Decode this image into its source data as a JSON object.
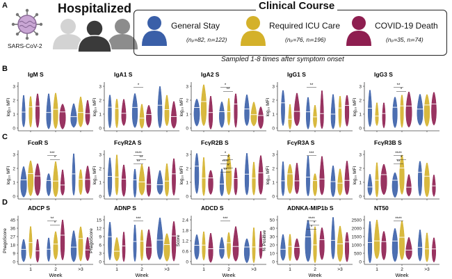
{
  "header": {
    "panel_letter": "A",
    "virus_label": "SARS-CoV-2",
    "hospitalized_title": "Hospitalized",
    "clinical_course_title": "Clinical Course",
    "sampled_note": "Sampled 1-8 times after symptom onset",
    "groups": [
      {
        "label": "General Stay",
        "n": "(nₚ=82, nₗ=122)",
        "color": "#3a5fa8"
      },
      {
        "label": "Required ICU Care",
        "n": "(nₚ=76, nₗ=196)",
        "color": "#d4b12a"
      },
      {
        "label": "COVID-19 Death",
        "n": "(nₚ=35, nₗ=74)",
        "color": "#8e1e50"
      }
    ]
  },
  "rows": [
    {
      "letter": "B",
      "panels": [
        {
          "title": "IgM S",
          "ylabel": "log₁₀ MFI",
          "ticks": [
            "0",
            "1",
            "2",
            "3"
          ],
          "sig": []
        },
        {
          "title": "IgA1 S",
          "ylabel": "log₁₀ MFI",
          "ticks": [
            "0",
            "1",
            "2",
            "3"
          ],
          "sig": [
            "*"
          ]
        },
        {
          "title": "IgA2 S",
          "ylabel": "log₁₀ MFI",
          "ticks": [
            "0",
            "1",
            "2",
            "3"
          ],
          "sig": [
            "*",
            "**"
          ]
        },
        {
          "title": "IgG1 S",
          "ylabel": "log₁₀ MFI",
          "ticks": [
            "0",
            "1",
            "2",
            "3"
          ],
          "sig": [
            "**"
          ]
        },
        {
          "title": "IgG3 S",
          "ylabel": "log₁₀ MFI",
          "ticks": [
            "0",
            "1",
            "2",
            "3"
          ],
          "sig": [
            "**",
            "*"
          ]
        }
      ]
    },
    {
      "letter": "C",
      "panels": [
        {
          "title": "FcαR S",
          "ylabel": "log₁₀ MFI",
          "ticks": [
            "0",
            "1",
            "2",
            "3"
          ],
          "sig": [
            "***",
            "*"
          ]
        },
        {
          "title": "FcγR2A S",
          "ylabel": "log₁₀ MFI",
          "ticks": [
            "0",
            "1",
            "2",
            "3"
          ],
          "sig": [
            "****",
            "**",
            "**"
          ]
        },
        {
          "title": "FcγR2B S",
          "ylabel": "log₁₀ MFI",
          "ticks": [
            "0",
            "1",
            "2",
            "3"
          ],
          "sig": [
            "*",
            "*",
            "****",
            "*",
            "**"
          ]
        },
        {
          "title": "FcγR3A S",
          "ylabel": "log₁₀ MFI",
          "ticks": [
            "0",
            "1",
            "2",
            "3"
          ],
          "sig": [
            "***"
          ]
        },
        {
          "title": "FcγR3B S",
          "ylabel": "log₁₀ MFI",
          "ticks": [
            "0",
            "1",
            "2",
            "3"
          ],
          "sig": [
            "****",
            "*",
            "**"
          ]
        }
      ]
    },
    {
      "letter": "D",
      "panels": [
        {
          "title": "ADCP S",
          "ylabel": "PhagoScore",
          "ticks": [
            "0",
            "9",
            "18",
            "27",
            "36",
            "45"
          ],
          "sig": [
            "**",
            "*"
          ]
        },
        {
          "title": "ADNP S",
          "ylabel": "PhagoScore",
          "ticks": [
            "0",
            "3",
            "6",
            "9",
            "12",
            "15"
          ],
          "sig": [
            "***"
          ]
        },
        {
          "title": "ADCD S",
          "ylabel": "Score",
          "ticks": [
            "0",
            "0.6",
            "1.2",
            "1.8",
            "2.4"
          ],
          "sig": [
            "***"
          ]
        },
        {
          "title": "ADNKA-MIP1b S",
          "ylabel": "% Positive",
          "ticks": [
            "0",
            "10",
            "20",
            "30",
            "40",
            "50"
          ],
          "sig": [
            "****",
            "*",
            "*"
          ]
        },
        {
          "title": "NT50",
          "ylabel": "",
          "ticks": [
            "0",
            "500",
            "1000",
            "1500",
            "2000",
            "2500"
          ],
          "sig": [
            "****"
          ]
        }
      ]
    }
  ],
  "x_ticks": [
    "1",
    "2",
    ">3"
  ],
  "x_label": "Week"
}
